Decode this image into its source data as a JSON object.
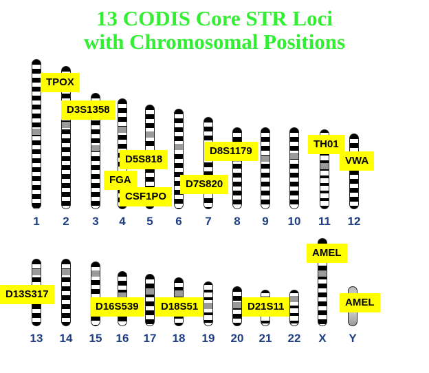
{
  "title": {
    "line1": "13 CODIS Core STR Loci",
    "line2": "with Chromosomal Positions"
  },
  "chromosomes": {
    "c1": "1",
    "c2": "2",
    "c3": "3",
    "c4": "4",
    "c5": "5",
    "c6": "6",
    "c7": "7",
    "c8": "8",
    "c9": "9",
    "c10": "10",
    "c11": "11",
    "c12": "12",
    "c13": "13",
    "c14": "14",
    "c15": "15",
    "c16": "16",
    "c17": "17",
    "c18": "18",
    "c19": "19",
    "c20": "20",
    "c21": "21",
    "c22": "22",
    "cX": "X",
    "cY": "Y"
  },
  "loci": {
    "tpox": "TPOX",
    "d3s1358": "D3S1358",
    "d5s818": "D5S818",
    "fga": "FGA",
    "csf1po": "CSF1PO",
    "d7s820": "D7S820",
    "d8s1179": "D8S1179",
    "th01": "TH01",
    "vwa": "VWA",
    "amel_x": "AMEL",
    "d13s317": "D13S317",
    "d16s539": "D16S539",
    "d18s51": "D18S51",
    "d21s11": "D21S11",
    "amel_y": "AMEL"
  }
}
